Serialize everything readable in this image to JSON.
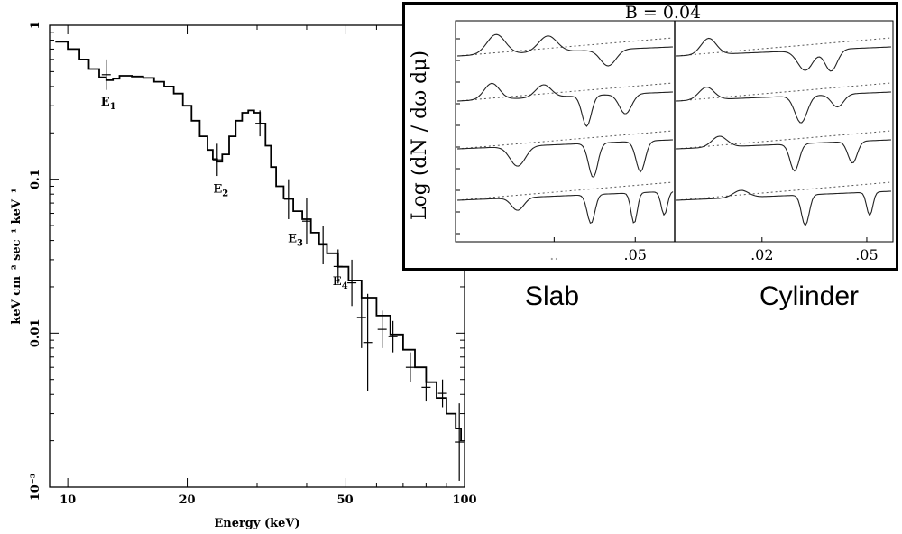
{
  "chart_data": [
    {
      "type": "line",
      "xlabel": "Energy (keV)",
      "ylabel": "keV cm⁻² sec⁻¹ keV⁻¹",
      "xscale": "log",
      "yscale": "log",
      "xlim": [
        9,
        100
      ],
      "ylim": [
        0.001,
        1
      ],
      "x_ticks": [
        10,
        20,
        50,
        100
      ],
      "x_tick_labels": [
        "10",
        "20",
        "50",
        "100"
      ],
      "y_ticks": [
        0.001,
        0.01,
        0.1,
        1
      ],
      "y_tick_labels": [
        "10⁻³",
        "0.01",
        "0.1",
        "1"
      ],
      "grid": false,
      "series": [
        {
          "x": [
            9.3,
            10,
            10.7,
            11.3,
            12,
            12.5,
            13,
            13.5,
            14.5,
            15.5,
            16.5,
            17.5,
            18.5,
            19.5,
            20.5,
            21.5,
            22.5,
            23.2,
            23.8,
            24.5,
            25.5,
            26.5,
            27.5,
            28.5,
            29.5,
            30.5,
            31.5,
            32.5,
            33.5,
            35,
            37,
            39,
            41,
            43,
            45,
            48,
            51,
            55,
            60,
            65,
            70,
            75,
            80,
            85,
            90,
            95,
            98
          ],
          "y": [
            0.78,
            0.7,
            0.6,
            0.52,
            0.46,
            0.44,
            0.45,
            0.47,
            0.465,
            0.455,
            0.43,
            0.4,
            0.36,
            0.3,
            0.24,
            0.19,
            0.155,
            0.135,
            0.13,
            0.145,
            0.19,
            0.24,
            0.27,
            0.28,
            0.27,
            0.23,
            0.165,
            0.12,
            0.09,
            0.075,
            0.062,
            0.055,
            0.045,
            0.038,
            0.033,
            0.027,
            0.022,
            0.017,
            0.013,
            0.0098,
            0.0078,
            0.006,
            0.0048,
            0.0038,
            0.003,
            0.0024,
            0.002
          ]
        }
      ],
      "error_bars": [
        {
          "x": 12.5,
          "lo": 0.38,
          "hi": 0.6
        },
        {
          "x": 23.8,
          "lo": 0.105,
          "hi": 0.17
        },
        {
          "x": 30.5,
          "lo": 0.19,
          "hi": 0.28
        },
        {
          "x": 36,
          "lo": 0.055,
          "hi": 0.1
        },
        {
          "x": 40,
          "lo": 0.038,
          "hi": 0.075
        },
        {
          "x": 44,
          "lo": 0.028,
          "hi": 0.05
        },
        {
          "x": 48,
          "lo": 0.021,
          "hi": 0.035
        },
        {
          "x": 52,
          "lo": 0.015,
          "hi": 0.03
        },
        {
          "x": 55,
          "lo": 0.008,
          "hi": 0.02
        },
        {
          "x": 57,
          "lo": 0.0042,
          "hi": 0.018
        },
        {
          "x": 62,
          "lo": 0.008,
          "hi": 0.014
        },
        {
          "x": 66,
          "lo": 0.0075,
          "hi": 0.012
        },
        {
          "x": 73,
          "lo": 0.0048,
          "hi": 0.0075
        },
        {
          "x": 80,
          "lo": 0.0036,
          "hi": 0.0055
        },
        {
          "x": 88,
          "lo": 0.0033,
          "hi": 0.005
        },
        {
          "x": 97,
          "lo": 0.0011,
          "hi": 0.0035
        }
      ],
      "annotations": [
        {
          "base": "E",
          "sub": "1",
          "x": 12.5,
          "y": 0.3
        },
        {
          "base": "E",
          "sub": "2",
          "x": 24,
          "y": 0.082
        },
        {
          "base": "E",
          "sub": "3",
          "x": 37,
          "y": 0.039
        },
        {
          "base": "E",
          "sub": "4",
          "x": 48,
          "y": 0.0205
        }
      ]
    },
    {
      "type": "line",
      "title": "B = 0.04",
      "ylabel": "Log (dN / dω dμ)",
      "panels": [
        {
          "name": "Slab",
          "tick_labels": [
            "..",
            ".05"
          ],
          "tick_positions": [
            0.45,
            0.82
          ]
        },
        {
          "name": "Cylinder",
          "tick_labels": [
            ".02",
            ".05"
          ],
          "tick_positions": [
            0.4,
            0.88
          ]
        }
      ],
      "curves_per_panel": 4
    }
  ]
}
